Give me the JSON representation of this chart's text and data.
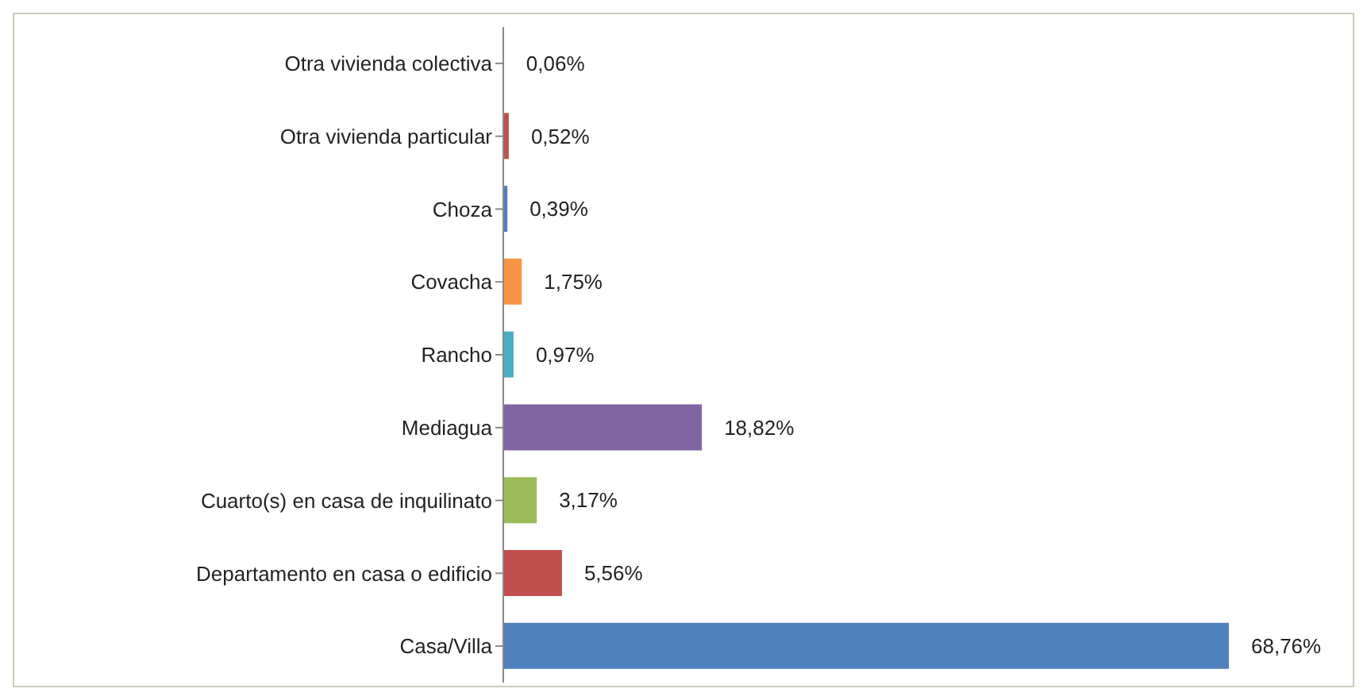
{
  "chart_data": {
    "type": "bar",
    "orientation": "horizontal",
    "categories": [
      "Otra vivienda colectiva",
      "Otra vivienda particular",
      "Choza",
      "Covacha",
      "Rancho",
      "Mediagua",
      "Cuarto(s) en casa de inquilinato",
      "Departamento en casa o edificio",
      "Casa/Villa"
    ],
    "values": [
      0.06,
      0.52,
      0.39,
      1.75,
      0.97,
      18.82,
      3.17,
      5.56,
      68.76
    ],
    "value_labels": [
      "0,06%",
      "0,52%",
      "0,39%",
      "1,75%",
      "0,97%",
      "18,82%",
      "3,17%",
      "5,56%",
      "68,76%"
    ],
    "colors": [
      "#9bbb59",
      "#c0504d",
      "#4f81bd",
      "#f79646",
      "#4bacc6",
      "#8064a2",
      "#9bbb59",
      "#c0504d",
      "#4f81bd"
    ],
    "legend": false,
    "grid": false
  }
}
